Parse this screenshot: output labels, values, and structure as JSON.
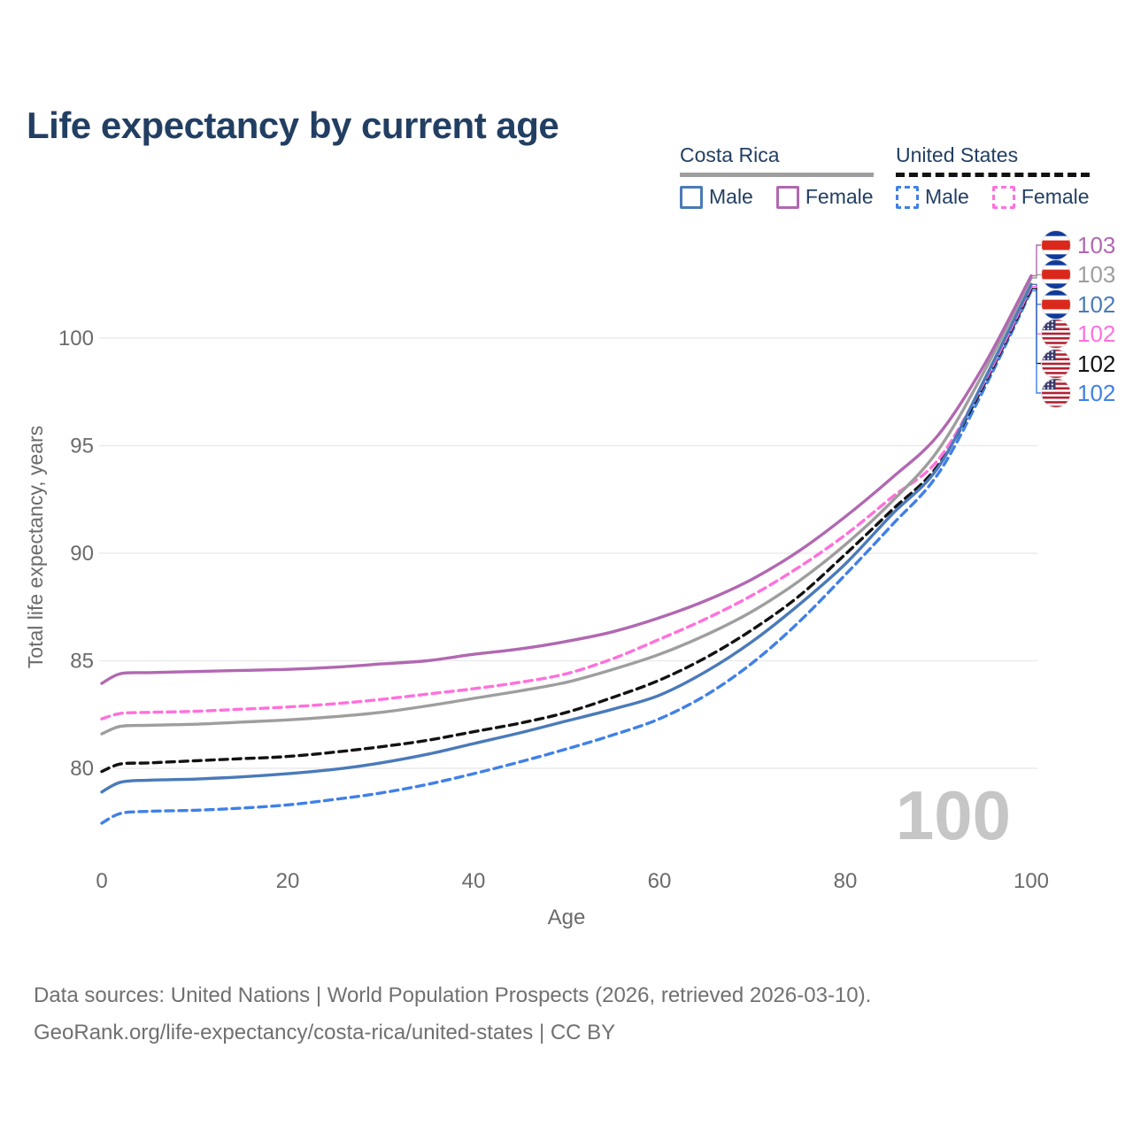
{
  "page": {
    "title": "Life expectancy by current age",
    "footer_line1": "Data sources: United Nations | World Population Prospects (2026, retrieved 2026-03-10).",
    "footer_line2": "GeoRank.org/life-expectancy/costa-rica/united-states | CC BY"
  },
  "colors": {
    "title_navy": "#223f63",
    "axis_gray": "#6b6b6b",
    "grid": "#e8e8e8",
    "footer_gray": "#707070",
    "watermark_gray": "#c6c6c6",
    "costa_rica_female": "#b168b1",
    "costa_rica_total": "#9e9e9e",
    "costa_rica_male": "#4a7ab9",
    "united_states_female": "#ff70dc",
    "united_states_total": "#121212",
    "united_states_male": "#4080e8"
  },
  "legend": {
    "groups": [
      {
        "country": "Costa Rica",
        "style": "solid",
        "underline": "#9e9e9e",
        "items": [
          {
            "label": "Male",
            "color": "#4a7ab9"
          },
          {
            "label": "Female",
            "color": "#b168b1"
          }
        ]
      },
      {
        "country": "United States",
        "style": "dashed",
        "underline": "#121212",
        "items": [
          {
            "label": "Male",
            "color": "#4080e8"
          },
          {
            "label": "Female",
            "color": "#ff70dc"
          }
        ]
      }
    ]
  },
  "end_labels": [
    {
      "value": "103",
      "color": "#b168b1",
      "flag": "costa-rica"
    },
    {
      "value": "103",
      "color": "#9e9e9e",
      "flag": "costa-rica"
    },
    {
      "value": "102",
      "color": "#4a7ab9",
      "flag": "costa-rica"
    },
    {
      "value": "102",
      "color": "#ff70dc",
      "flag": "united-states"
    },
    {
      "value": "102",
      "color": "#121212",
      "flag": "united-states"
    },
    {
      "value": "102",
      "color": "#4080e8",
      "flag": "united-states"
    }
  ],
  "chart_data": {
    "type": "line",
    "title": "Life expectancy by current age",
    "xlabel": "Age",
    "ylabel": "Total life expectancy, years",
    "xticks": [
      0,
      20,
      40,
      60,
      80,
      100
    ],
    "yticks": [
      80,
      85,
      90,
      95,
      100
    ],
    "xlim": [
      0,
      100
    ],
    "ylim": [
      76.5,
      104
    ],
    "grid": "horizontal-only",
    "legend_position": "top-right",
    "watermark": "100",
    "x": [
      0,
      2,
      5,
      10,
      15,
      20,
      25,
      30,
      35,
      40,
      45,
      50,
      55,
      60,
      65,
      70,
      75,
      80,
      85,
      90,
      95,
      100
    ],
    "series": [
      {
        "name": "Costa Rica Female",
        "country": "Costa Rica",
        "sex": "Female",
        "style": "solid",
        "color": "#b168b1",
        "end_label": "103",
        "values": [
          83.95,
          84.4,
          84.45,
          84.5,
          84.55,
          84.6,
          84.7,
          84.85,
          85.0,
          85.3,
          85.55,
          85.9,
          86.35,
          87.0,
          87.8,
          88.8,
          90.1,
          91.7,
          93.5,
          95.5,
          98.8,
          102.9
        ]
      },
      {
        "name": "Costa Rica Both sexes",
        "country": "Costa Rica",
        "sex": "Both",
        "style": "solid",
        "color": "#9e9e9e",
        "end_label": "103",
        "values": [
          81.6,
          81.95,
          82.0,
          82.05,
          82.15,
          82.25,
          82.4,
          82.6,
          82.9,
          83.25,
          83.6,
          84.0,
          84.6,
          85.3,
          86.2,
          87.3,
          88.7,
          90.4,
          92.4,
          94.8,
          98.5,
          102.8
        ]
      },
      {
        "name": "Costa Rica Male",
        "country": "Costa Rica",
        "sex": "Male",
        "style": "solid",
        "color": "#4a7ab9",
        "end_label": "102",
        "values": [
          78.9,
          79.35,
          79.45,
          79.5,
          79.6,
          79.75,
          79.95,
          80.25,
          80.65,
          81.15,
          81.65,
          82.2,
          82.75,
          83.4,
          84.5,
          85.9,
          87.6,
          89.5,
          91.8,
          94.0,
          98.1,
          102.5
        ]
      },
      {
        "name": "United States Female",
        "country": "United States",
        "sex": "Female",
        "style": "dashed",
        "color": "#ff70dc",
        "end_label": "102",
        "values": [
          82.3,
          82.55,
          82.6,
          82.65,
          82.75,
          82.85,
          83.0,
          83.2,
          83.45,
          83.7,
          84.0,
          84.4,
          85.1,
          86.0,
          86.95,
          88.05,
          89.35,
          90.85,
          92.6,
          94.35,
          98.0,
          102.4
        ]
      },
      {
        "name": "United States Both sexes",
        "country": "United States",
        "sex": "Both",
        "style": "dashed",
        "color": "#121212",
        "end_label": "102",
        "values": [
          79.85,
          80.2,
          80.25,
          80.35,
          80.45,
          80.55,
          80.75,
          81.0,
          81.3,
          81.7,
          82.1,
          82.6,
          83.3,
          84.1,
          85.15,
          86.45,
          88.0,
          89.95,
          92.0,
          94.1,
          97.9,
          102.3
        ]
      },
      {
        "name": "United States Male",
        "country": "United States",
        "sex": "Male",
        "style": "dashed",
        "color": "#4080e8",
        "end_label": "102",
        "values": [
          77.45,
          77.9,
          78.0,
          78.05,
          78.15,
          78.3,
          78.55,
          78.85,
          79.25,
          79.75,
          80.3,
          80.9,
          81.55,
          82.3,
          83.4,
          84.9,
          86.8,
          89.0,
          91.3,
          93.7,
          97.7,
          102.2
        ]
      }
    ]
  }
}
